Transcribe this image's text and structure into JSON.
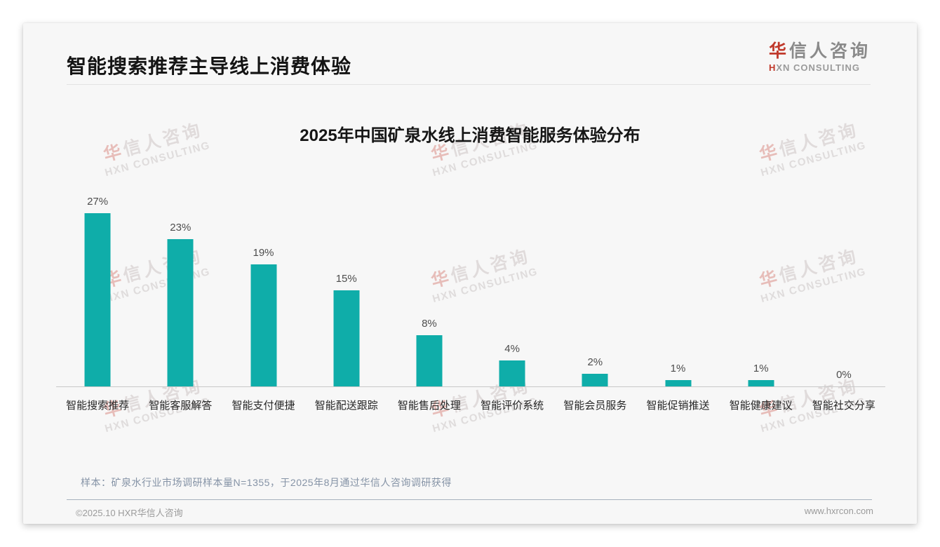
{
  "page": {
    "title": "智能搜索推荐主导线上消费体验",
    "logo": {
      "cn_first": "华",
      "cn_rest": "信人咨询",
      "en_first": "H",
      "en_rest": "XN CONSULTING"
    },
    "watermark": {
      "cn_first": "华",
      "cn_rest": "信人咨询",
      "en": "HXN CONSULTING"
    },
    "footnote": "样本：矿泉水行业市场调研样本量N=1355，于2025年8月通过华信人咨询调研获得",
    "footer_left": "©2025.10 HXR华信人咨询",
    "footer_right": "www.hxrcon.com"
  },
  "chart_data": {
    "type": "bar",
    "title": "2025年中国矿泉水线上消费智能服务体验分布",
    "categories": [
      "智能搜索推荐",
      "智能客服解答",
      "智能支付便捷",
      "智能配送跟踪",
      "智能售后处理",
      "智能评价系统",
      "智能会员服务",
      "智能促销推送",
      "智能健康建议",
      "智能社交分享"
    ],
    "values": [
      27,
      23,
      19,
      15,
      8,
      4,
      2,
      1,
      1,
      0
    ],
    "value_labels": [
      "27%",
      "23%",
      "19%",
      "15%",
      "8%",
      "4%",
      "2%",
      "1%",
      "1%",
      "0%"
    ],
    "unit": "%",
    "xlabel": "",
    "ylabel": "",
    "ylim": [
      0,
      30
    ],
    "grid": false,
    "legend": false,
    "bar_color": "#0FADA9",
    "axis_color": "#c9c9c9"
  }
}
